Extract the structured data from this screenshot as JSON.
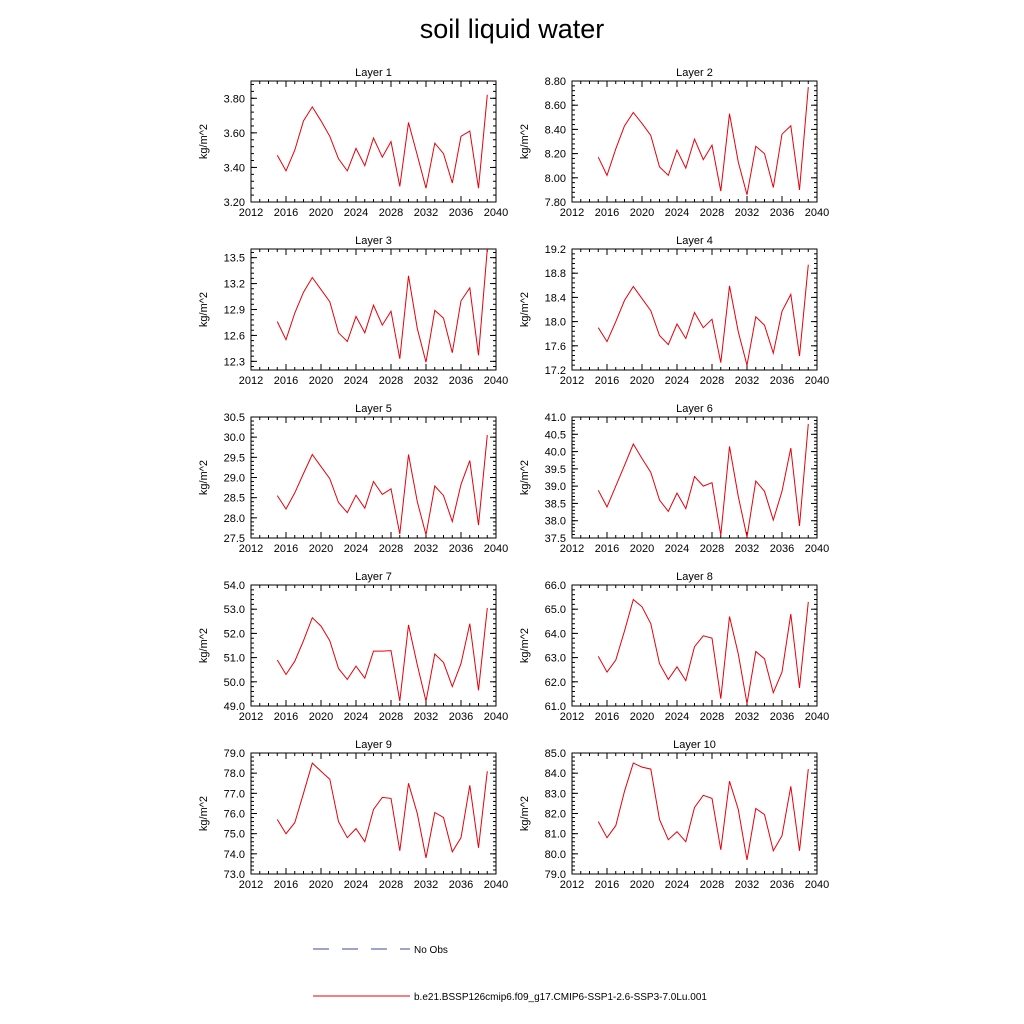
{
  "title": "soil liquid water",
  "legend": [
    {
      "label": "No Obs",
      "style": "dashed",
      "color": "#3b4aa0"
    },
    {
      "label": "b.e21.BSSP126cmip6.f09_g17.CMIP6-SSP1-2.6-SSP3-7.0Lu.001",
      "style": "solid",
      "color": "#e8000b"
    }
  ],
  "chart_data": [
    {
      "type": "line",
      "title": "Layer 1",
      "ylabel": "kg/m^2",
      "xlim": [
        2012,
        2040
      ],
      "xticks": [
        2012,
        2016,
        2020,
        2024,
        2028,
        2032,
        2036,
        2040
      ],
      "ylim": [
        3.2,
        3.9
      ],
      "yticks": [
        "3.20",
        "3.40",
        "3.60",
        "3.80"
      ],
      "x": [
        2015,
        2016,
        2017,
        2018,
        2019,
        2020,
        2021,
        2022,
        2023,
        2024,
        2025,
        2026,
        2027,
        2028,
        2029,
        2030,
        2031,
        2032,
        2033,
        2034,
        2035,
        2036,
        2037,
        2038,
        2039
      ],
      "series": [
        {
          "values": [
            3.47,
            3.38,
            3.5,
            3.67,
            3.75,
            3.67,
            3.58,
            3.45,
            3.38,
            3.51,
            3.41,
            3.57,
            3.46,
            3.55,
            3.29,
            3.66,
            3.47,
            3.28,
            3.54,
            3.48,
            3.31,
            3.58,
            3.61,
            3.28,
            3.82
          ]
        }
      ]
    },
    {
      "type": "line",
      "title": "Layer 2",
      "ylabel": "kg/m^2",
      "xlim": [
        2012,
        2040
      ],
      "xticks": [
        2012,
        2016,
        2020,
        2024,
        2028,
        2032,
        2036,
        2040
      ],
      "ylim": [
        7.8,
        8.8
      ],
      "yticks": [
        "7.80",
        "8.00",
        "8.20",
        "8.40",
        "8.60",
        "8.80"
      ],
      "x": [
        2015,
        2016,
        2017,
        2018,
        2019,
        2020,
        2021,
        2022,
        2023,
        2024,
        2025,
        2026,
        2027,
        2028,
        2029,
        2030,
        2031,
        2032,
        2033,
        2034,
        2035,
        2036,
        2037,
        2038,
        2039
      ],
      "series": [
        {
          "values": [
            8.17,
            8.02,
            8.24,
            8.43,
            8.54,
            8.45,
            8.35,
            8.09,
            8.02,
            8.23,
            8.08,
            8.32,
            8.15,
            8.27,
            7.89,
            8.53,
            8.13,
            7.86,
            8.26,
            8.2,
            7.92,
            8.36,
            8.43,
            7.9,
            8.75
          ]
        }
      ]
    },
    {
      "type": "line",
      "title": "Layer 3",
      "ylabel": "kg/m^2",
      "xlim": [
        2012,
        2040
      ],
      "xticks": [
        2012,
        2016,
        2020,
        2024,
        2028,
        2032,
        2036,
        2040
      ],
      "ylim": [
        12.2,
        13.6
      ],
      "yticks": [
        "12.3",
        "12.6",
        "12.9",
        "13.2",
        "13.5"
      ],
      "x": [
        2015,
        2016,
        2017,
        2018,
        2019,
        2020,
        2021,
        2022,
        2023,
        2024,
        2025,
        2026,
        2027,
        2028,
        2029,
        2030,
        2031,
        2032,
        2033,
        2034,
        2035,
        2036,
        2037,
        2038,
        2039
      ],
      "series": [
        {
          "values": [
            12.76,
            12.55,
            12.86,
            13.1,
            13.27,
            13.13,
            12.99,
            12.63,
            12.53,
            12.82,
            12.63,
            12.95,
            12.72,
            12.88,
            12.33,
            13.29,
            12.68,
            12.29,
            12.89,
            12.8,
            12.4,
            13.0,
            13.15,
            12.37,
            13.6
          ]
        }
      ]
    },
    {
      "type": "line",
      "title": "Layer 4",
      "ylabel": "kg/m^2",
      "xlim": [
        2012,
        2040
      ],
      "xticks": [
        2012,
        2016,
        2020,
        2024,
        2028,
        2032,
        2036,
        2040
      ],
      "ylim": [
        17.2,
        19.2
      ],
      "yticks": [
        "17.2",
        "17.6",
        "18.0",
        "18.4",
        "18.8",
        "19.2"
      ],
      "x": [
        2015,
        2016,
        2017,
        2018,
        2019,
        2020,
        2021,
        2022,
        2023,
        2024,
        2025,
        2026,
        2027,
        2028,
        2029,
        2030,
        2031,
        2032,
        2033,
        2034,
        2035,
        2036,
        2037,
        2038,
        2039
      ],
      "series": [
        {
          "values": [
            17.9,
            17.67,
            18.0,
            18.35,
            18.58,
            18.38,
            18.18,
            17.77,
            17.62,
            17.96,
            17.72,
            18.15,
            17.9,
            18.04,
            17.32,
            18.59,
            17.83,
            17.28,
            18.08,
            17.94,
            17.48,
            18.17,
            18.45,
            17.43,
            18.94
          ]
        }
      ]
    },
    {
      "type": "line",
      "title": "Layer 5",
      "ylabel": "kg/m^2",
      "xlim": [
        2012,
        2040
      ],
      "xticks": [
        2012,
        2016,
        2020,
        2024,
        2028,
        2032,
        2036,
        2040
      ],
      "ylim": [
        27.5,
        30.5
      ],
      "yticks": [
        "27.5",
        "28.0",
        "28.5",
        "29.0",
        "29.5",
        "30.0",
        "30.5"
      ],
      "x": [
        2015,
        2016,
        2017,
        2018,
        2019,
        2020,
        2021,
        2022,
        2023,
        2024,
        2025,
        2026,
        2027,
        2028,
        2029,
        2030,
        2031,
        2032,
        2033,
        2034,
        2035,
        2036,
        2037,
        2038,
        2039
      ],
      "series": [
        {
          "values": [
            28.55,
            28.22,
            28.62,
            29.1,
            29.57,
            29.27,
            28.97,
            28.38,
            28.13,
            28.56,
            28.24,
            28.9,
            28.58,
            28.72,
            27.6,
            29.57,
            28.4,
            27.58,
            28.79,
            28.55,
            27.91,
            28.83,
            29.42,
            27.82,
            30.05
          ]
        }
      ]
    },
    {
      "type": "line",
      "title": "Layer 6",
      "ylabel": "kg/m^2",
      "xlim": [
        2012,
        2040
      ],
      "xticks": [
        2012,
        2016,
        2020,
        2024,
        2028,
        2032,
        2036,
        2040
      ],
      "ylim": [
        37.5,
        41.0
      ],
      "yticks": [
        "37.5",
        "38.0",
        "38.5",
        "39.0",
        "39.5",
        "40.0",
        "40.5",
        "41.0"
      ],
      "x": [
        2015,
        2016,
        2017,
        2018,
        2019,
        2020,
        2021,
        2022,
        2023,
        2024,
        2025,
        2026,
        2027,
        2028,
        2029,
        2030,
        2031,
        2032,
        2033,
        2034,
        2035,
        2036,
        2037,
        2038,
        2039
      ],
      "series": [
        {
          "values": [
            38.88,
            38.4,
            39.0,
            39.6,
            40.22,
            39.8,
            39.4,
            38.6,
            38.27,
            38.8,
            38.35,
            39.28,
            39.0,
            39.1,
            37.58,
            40.15,
            38.7,
            37.53,
            39.15,
            38.85,
            38.02,
            38.85,
            40.1,
            37.85,
            40.8
          ]
        }
      ]
    },
    {
      "type": "line",
      "title": "Layer 7",
      "ylabel": "kg/m^2",
      "xlim": [
        2012,
        2040
      ],
      "xticks": [
        2012,
        2016,
        2020,
        2024,
        2028,
        2032,
        2036,
        2040
      ],
      "ylim": [
        49.0,
        54.0
      ],
      "yticks": [
        "49.0",
        "50.0",
        "51.0",
        "52.0",
        "53.0",
        "54.0"
      ],
      "x": [
        2015,
        2016,
        2017,
        2018,
        2019,
        2020,
        2021,
        2022,
        2023,
        2024,
        2025,
        2026,
        2027,
        2028,
        2029,
        2030,
        2031,
        2032,
        2033,
        2034,
        2035,
        2036,
        2037,
        2038,
        2039
      ],
      "series": [
        {
          "values": [
            50.9,
            50.3,
            50.85,
            51.7,
            52.65,
            52.3,
            51.7,
            50.55,
            50.1,
            50.65,
            50.15,
            51.27,
            51.27,
            51.29,
            49.2,
            52.35,
            50.7,
            49.2,
            51.15,
            50.8,
            49.8,
            50.75,
            52.4,
            49.65,
            53.05
          ]
        }
      ]
    },
    {
      "type": "line",
      "title": "Layer 8",
      "ylabel": "kg/m^2",
      "xlim": [
        2012,
        2040
      ],
      "xticks": [
        2012,
        2016,
        2020,
        2024,
        2028,
        2032,
        2036,
        2040
      ],
      "ylim": [
        61.0,
        66.0
      ],
      "yticks": [
        "61.0",
        "62.0",
        "63.0",
        "64.0",
        "65.0",
        "66.0"
      ],
      "x": [
        2015,
        2016,
        2017,
        2018,
        2019,
        2020,
        2021,
        2022,
        2023,
        2024,
        2025,
        2026,
        2027,
        2028,
        2029,
        2030,
        2031,
        2032,
        2033,
        2034,
        2035,
        2036,
        2037,
        2038,
        2039
      ],
      "series": [
        {
          "values": [
            63.05,
            62.4,
            62.9,
            64.1,
            65.4,
            65.1,
            64.4,
            62.75,
            62.1,
            62.62,
            62.05,
            63.45,
            63.9,
            63.8,
            61.3,
            64.7,
            63.15,
            61.1,
            63.25,
            62.95,
            61.55,
            62.4,
            64.8,
            61.75,
            65.3
          ]
        }
      ]
    },
    {
      "type": "line",
      "title": "Layer 9",
      "ylabel": "kg/m^2",
      "xlim": [
        2012,
        2040
      ],
      "xticks": [
        2012,
        2016,
        2020,
        2024,
        2028,
        2032,
        2036,
        2040
      ],
      "ylim": [
        73.0,
        79.0
      ],
      "yticks": [
        "73.0",
        "74.0",
        "75.0",
        "76.0",
        "77.0",
        "78.0",
        "79.0"
      ],
      "x": [
        2015,
        2016,
        2017,
        2018,
        2019,
        2020,
        2021,
        2022,
        2023,
        2024,
        2025,
        2026,
        2027,
        2028,
        2029,
        2030,
        2031,
        2032,
        2033,
        2034,
        2035,
        2036,
        2037,
        2038,
        2039
      ],
      "series": [
        {
          "values": [
            75.7,
            75.0,
            75.55,
            77.0,
            78.5,
            78.1,
            77.7,
            75.6,
            74.8,
            75.25,
            74.6,
            76.2,
            76.8,
            76.75,
            74.15,
            77.5,
            76.0,
            73.8,
            76.05,
            75.8,
            74.1,
            74.8,
            77.4,
            74.3,
            78.1
          ]
        }
      ]
    },
    {
      "type": "line",
      "title": "Layer 10",
      "ylabel": "kg/m^2",
      "xlim": [
        2012,
        2040
      ],
      "xticks": [
        2012,
        2016,
        2020,
        2024,
        2028,
        2032,
        2036,
        2040
      ],
      "ylim": [
        79.0,
        85.0
      ],
      "yticks": [
        "79.0",
        "80.0",
        "81.0",
        "82.0",
        "83.0",
        "84.0",
        "85.0"
      ],
      "x": [
        2015,
        2016,
        2017,
        2018,
        2019,
        2020,
        2021,
        2022,
        2023,
        2024,
        2025,
        2026,
        2027,
        2028,
        2029,
        2030,
        2031,
        2032,
        2033,
        2034,
        2035,
        2036,
        2037,
        2038,
        2039
      ],
      "series": [
        {
          "values": [
            81.6,
            80.8,
            81.4,
            83.1,
            84.5,
            84.3,
            84.2,
            81.7,
            80.7,
            81.1,
            80.6,
            82.3,
            82.9,
            82.75,
            80.2,
            83.6,
            82.2,
            79.7,
            82.25,
            81.95,
            80.15,
            80.9,
            83.35,
            80.15,
            84.2
          ]
        }
      ]
    }
  ]
}
